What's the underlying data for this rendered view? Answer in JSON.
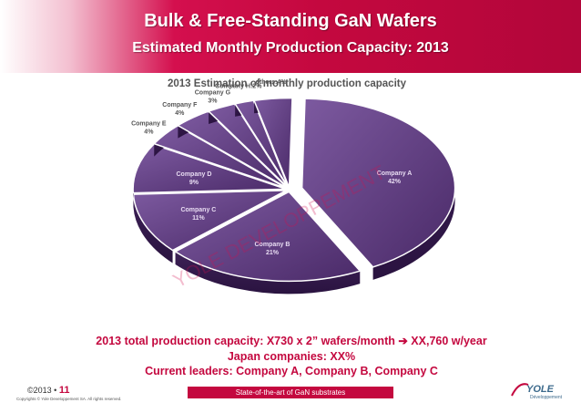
{
  "header": {
    "title": "Bulk & Free-Standing GaN Wafers",
    "subtitle": "Estimated Monthly Production Capacity: 2013",
    "gradient_color": "#c4083f"
  },
  "chart_data": {
    "type": "pie",
    "title": "2013 Estimation of monthly production capacity",
    "slices": [
      {
        "label": "Company A",
        "value": 42,
        "value_label": "42%"
      },
      {
        "label": "Company B",
        "value": 21,
        "value_label": "21%"
      },
      {
        "label": "Company C",
        "value": 11,
        "value_label": "11%"
      },
      {
        "label": "Company D",
        "value": 9,
        "value_label": "9%"
      },
      {
        "label": "Company E",
        "value": 4,
        "value_label": "4%"
      },
      {
        "label": "Company F",
        "value": 4,
        "value_label": "4%"
      },
      {
        "label": "Company G",
        "value": 3,
        "value_label": "3%"
      },
      {
        "label": "Company H",
        "value": 2,
        "value_label": "Company H:2%"
      },
      {
        "label": "others",
        "value": 4,
        "value_label": "others:4%"
      }
    ],
    "watermark": "YOLE DEVELOPPEMENT",
    "slice_color": "#5e3a7e"
  },
  "summary": {
    "line1_prefix": "2013 total production capacity: X730  x 2” wafers/month ",
    "arrow_glyph": "➔",
    "line1_suffix": " XX,760 w/year",
    "line2": "Japan companies: XX%",
    "line3": "Current leaders: Company A, Company B, Company C"
  },
  "footer": {
    "page_prefix": "©2013 • ",
    "page_number": "11",
    "copyright": "Copyrights © Yole Developpement SA. All rights reserved.",
    "center_text": "State-of-the-art of GaN substrates",
    "logo_text": "YOLE",
    "logo_sub": "Développement"
  }
}
